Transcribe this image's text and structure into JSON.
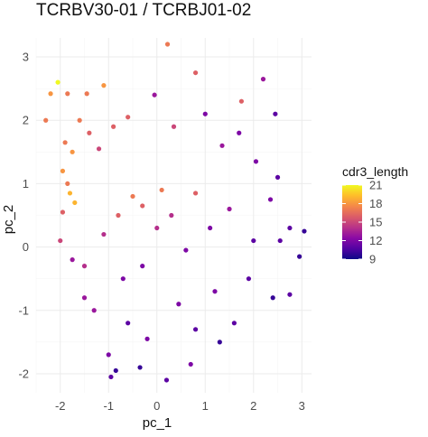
{
  "chart_data": {
    "type": "scatter",
    "title": "TCRBV30-01 / TCRBJ01-02",
    "xlabel": "pc_1",
    "ylabel": "pc_2",
    "xlim": [
      -2.5,
      3.2
    ],
    "ylim": [
      -2.3,
      3.3
    ],
    "x_ticks": [
      -2,
      -1,
      0,
      1,
      2,
      3
    ],
    "y_ticks": [
      -2,
      -1,
      0,
      1,
      2,
      3
    ],
    "grid": true,
    "color_scale": {
      "name": "cdr3_length",
      "palette": "plasma",
      "min": 9,
      "max": 21,
      "ticks": [
        9,
        12,
        15,
        18,
        21
      ],
      "stops": [
        "#0d0887",
        "#5302a3",
        "#8b0aa5",
        "#b83289",
        "#db5c68",
        "#f48849",
        "#febd2a",
        "#f0f921"
      ]
    },
    "legend_position": "right",
    "points": [
      {
        "x": 0.22,
        "y": 3.2,
        "c": 17
      },
      {
        "x": 0.8,
        "y": 2.75,
        "c": 16
      },
      {
        "x": -2.05,
        "y": 2.6,
        "c": 21
      },
      {
        "x": -1.1,
        "y": 2.55,
        "c": 18
      },
      {
        "x": -2.2,
        "y": 2.42,
        "c": 18
      },
      {
        "x": -1.85,
        "y": 2.42,
        "c": 17
      },
      {
        "x": -1.45,
        "y": 2.42,
        "c": 17
      },
      {
        "x": 2.2,
        "y": 2.65,
        "c": 13
      },
      {
        "x": -0.05,
        "y": 2.4,
        "c": 13
      },
      {
        "x": 1.75,
        "y": 2.3,
        "c": 16
      },
      {
        "x": 2.45,
        "y": 2.1,
        "c": 11
      },
      {
        "x": -2.3,
        "y": 2.0,
        "c": 17
      },
      {
        "x": -1.6,
        "y": 2.0,
        "c": 17
      },
      {
        "x": 1.0,
        "y": 2.1,
        "c": 12
      },
      {
        "x": -1.9,
        "y": 1.65,
        "c": 17
      },
      {
        "x": -1.75,
        "y": 1.5,
        "c": 18
      },
      {
        "x": -1.95,
        "y": 1.2,
        "c": 18
      },
      {
        "x": -1.85,
        "y": 1.0,
        "c": 17
      },
      {
        "x": -1.8,
        "y": 0.85,
        "c": 19
      },
      {
        "x": -1.7,
        "y": 0.7,
        "c": 19
      },
      {
        "x": -1.95,
        "y": 0.55,
        "c": 16
      },
      {
        "x": -0.5,
        "y": 0.8,
        "c": 17
      },
      {
        "x": -0.3,
        "y": 0.65,
        "c": 16
      },
      {
        "x": -0.8,
        "y": 0.5,
        "c": 16
      },
      {
        "x": 0.1,
        "y": 0.9,
        "c": 17
      },
      {
        "x": 0.8,
        "y": 0.85,
        "c": 16
      },
      {
        "x": -1.4,
        "y": 1.8,
        "c": 16
      },
      {
        "x": -1.2,
        "y": 1.55,
        "c": 15
      },
      {
        "x": -0.9,
        "y": 1.9,
        "c": 16
      },
      {
        "x": -0.6,
        "y": 2.05,
        "c": 16
      },
      {
        "x": 0.35,
        "y": 1.9,
        "c": 15
      },
      {
        "x": 1.35,
        "y": 1.6,
        "c": 13
      },
      {
        "x": 1.7,
        "y": 1.8,
        "c": 12
      },
      {
        "x": 2.05,
        "y": 1.35,
        "c": 12
      },
      {
        "x": 2.5,
        "y": 1.1,
        "c": 11
      },
      {
        "x": 2.35,
        "y": 0.75,
        "c": 12
      },
      {
        "x": 2.75,
        "y": 0.3,
        "c": 11
      },
      {
        "x": 3.05,
        "y": 0.25,
        "c": 10
      },
      {
        "x": 2.55,
        "y": 0.1,
        "c": 11
      },
      {
        "x": 2.95,
        "y": -0.15,
        "c": 10
      },
      {
        "x": 2.75,
        "y": -0.75,
        "c": 11
      },
      {
        "x": 2.4,
        "y": -0.8,
        "c": 10
      },
      {
        "x": 1.6,
        "y": -1.2,
        "c": 11
      },
      {
        "x": 1.3,
        "y": -1.5,
        "c": 10
      },
      {
        "x": 0.7,
        "y": -1.85,
        "c": 12
      },
      {
        "x": 0.2,
        "y": -2.1,
        "c": 11
      },
      {
        "x": -0.35,
        "y": -1.9,
        "c": 10
      },
      {
        "x": -0.85,
        "y": -1.95,
        "c": 10
      },
      {
        "x": -0.95,
        "y": -2.05,
        "c": 11
      },
      {
        "x": -1.0,
        "y": -1.7,
        "c": 12
      },
      {
        "x": -1.3,
        "y": -1.0,
        "c": 13
      },
      {
        "x": -1.5,
        "y": -0.8,
        "c": 13
      },
      {
        "x": -1.75,
        "y": -0.2,
        "c": 13
      },
      {
        "x": -2.0,
        "y": 0.1,
        "c": 15
      },
      {
        "x": 0.6,
        "y": -0.05,
        "c": 12
      },
      {
        "x": 1.1,
        "y": 0.3,
        "c": 12
      },
      {
        "x": -0.3,
        "y": -0.3,
        "c": 12
      },
      {
        "x": 0.0,
        "y": 0.3,
        "c": 14
      },
      {
        "x": 1.9,
        "y": -0.5,
        "c": 11
      },
      {
        "x": 2.0,
        "y": 0.1,
        "c": 11
      },
      {
        "x": 0.45,
        "y": -0.9,
        "c": 12
      },
      {
        "x": -0.6,
        "y": -1.2,
        "c": 11
      },
      {
        "x": -0.2,
        "y": -1.45,
        "c": 12
      },
      {
        "x": 0.8,
        "y": -1.3,
        "c": 11
      },
      {
        "x": 1.5,
        "y": 0.6,
        "c": 13
      },
      {
        "x": -1.1,
        "y": 0.2,
        "c": 14
      },
      {
        "x": -0.7,
        "y": -0.5,
        "c": 12
      },
      {
        "x": 0.3,
        "y": 0.5,
        "c": 14
      },
      {
        "x": 1.2,
        "y": -0.7,
        "c": 12
      },
      {
        "x": -1.5,
        "y": -0.3,
        "c": 14
      }
    ]
  }
}
